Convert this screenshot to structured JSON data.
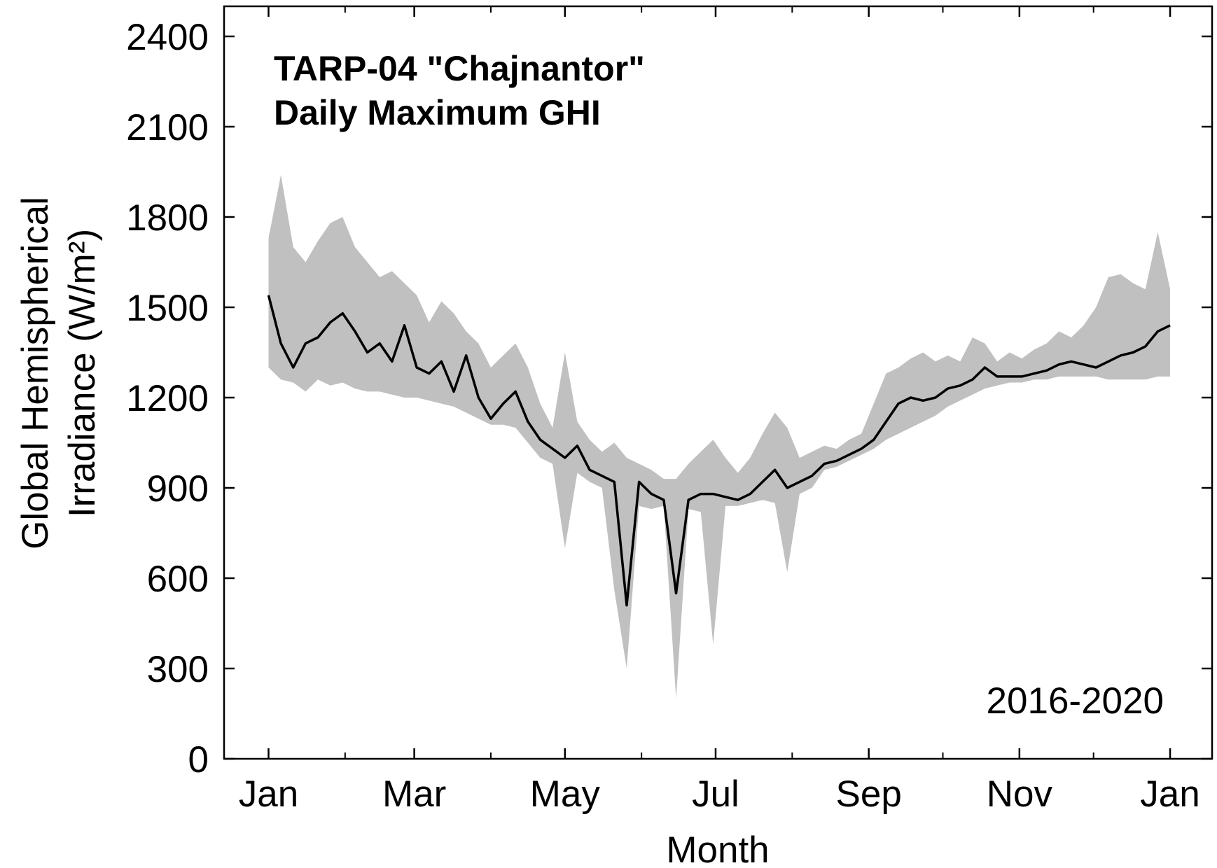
{
  "chart_data": {
    "type": "line",
    "title": [
      "TARP-04 \"Chajnantor\"",
      "Daily Maximum GHI"
    ],
    "annotation": "2016-2020",
    "xlabel": "Month",
    "ylabel": [
      "Global Hemispherical",
      "Irradiance (W/m²)"
    ],
    "xlim": [
      -17,
      383
    ],
    "ylim": [
      0,
      2500
    ],
    "xticks": [
      {
        "value": 1,
        "label": "Jan"
      },
      {
        "value": 60,
        "label": "Mar"
      },
      {
        "value": 121,
        "label": "May"
      },
      {
        "value": 182,
        "label": "Jul"
      },
      {
        "value": 244,
        "label": "Sep"
      },
      {
        "value": 305,
        "label": "Nov"
      },
      {
        "value": 366,
        "label": "Jan"
      }
    ],
    "xminorticks": [
      32,
      91,
      152,
      213,
      274,
      335
    ],
    "yticks": [
      0,
      300,
      600,
      900,
      1200,
      1500,
      1800,
      2100,
      2400
    ],
    "x": [
      1,
      6,
      11,
      16,
      21,
      26,
      31,
      36,
      41,
      46,
      51,
      56,
      61,
      66,
      71,
      76,
      81,
      86,
      91,
      96,
      101,
      106,
      111,
      116,
      121,
      126,
      131,
      136,
      141,
      146,
      151,
      156,
      161,
      166,
      171,
      176,
      181,
      186,
      191,
      196,
      201,
      206,
      211,
      216,
      221,
      226,
      231,
      236,
      241,
      246,
      251,
      256,
      261,
      266,
      271,
      276,
      281,
      286,
      291,
      296,
      301,
      306,
      311,
      316,
      321,
      326,
      331,
      336,
      341,
      346,
      351,
      356,
      361,
      366
    ],
    "series": [
      {
        "color": "#000000",
        "values": [
          1540,
          1380,
          1300,
          1380,
          1400,
          1450,
          1480,
          1420,
          1350,
          1380,
          1320,
          1440,
          1300,
          1280,
          1320,
          1220,
          1340,
          1200,
          1130,
          1180,
          1220,
          1120,
          1060,
          1030,
          1000,
          1040,
          960,
          940,
          920,
          510,
          920,
          880,
          860,
          550,
          860,
          880,
          880,
          870,
          860,
          880,
          920,
          960,
          900,
          920,
          940,
          980,
          990,
          1010,
          1030,
          1060,
          1120,
          1180,
          1200,
          1190,
          1200,
          1230,
          1240,
          1260,
          1300,
          1270,
          1270,
          1270,
          1280,
          1290,
          1310,
          1320,
          1310,
          1300,
          1320,
          1340,
          1350,
          1370,
          1420,
          1440
        ]
      }
    ],
    "band": {
      "color": "#c0c0c0",
      "min": [
        1300,
        1260,
        1250,
        1220,
        1260,
        1240,
        1250,
        1230,
        1220,
        1220,
        1210,
        1200,
        1200,
        1190,
        1180,
        1170,
        1150,
        1130,
        1110,
        1110,
        1100,
        1050,
        1000,
        980,
        700,
        950,
        920,
        900,
        560,
        300,
        840,
        830,
        840,
        200,
        830,
        820,
        380,
        840,
        840,
        850,
        860,
        850,
        620,
        880,
        900,
        960,
        970,
        990,
        1010,
        1030,
        1060,
        1080,
        1100,
        1120,
        1140,
        1170,
        1190,
        1210,
        1230,
        1240,
        1250,
        1250,
        1260,
        1260,
        1270,
        1270,
        1270,
        1270,
        1260,
        1260,
        1260,
        1260,
        1270,
        1270
      ],
      "max": [
        1730,
        1940,
        1700,
        1650,
        1720,
        1780,
        1800,
        1700,
        1650,
        1600,
        1620,
        1580,
        1540,
        1450,
        1520,
        1480,
        1420,
        1380,
        1300,
        1340,
        1380,
        1300,
        1180,
        1100,
        1350,
        1120,
        1060,
        1020,
        1050,
        1000,
        980,
        960,
        930,
        930,
        980,
        1020,
        1060,
        1000,
        950,
        1000,
        1080,
        1150,
        1100,
        1000,
        1020,
        1040,
        1030,
        1060,
        1080,
        1180,
        1280,
        1300,
        1330,
        1350,
        1320,
        1340,
        1320,
        1400,
        1380,
        1320,
        1350,
        1330,
        1360,
        1380,
        1420,
        1400,
        1440,
        1500,
        1600,
        1610,
        1580,
        1560,
        1750,
        1560
      ]
    }
  }
}
